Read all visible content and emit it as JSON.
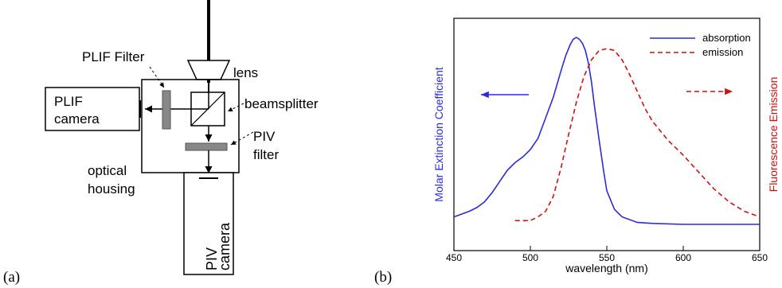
{
  "panel_a": {
    "label": "(a)",
    "lens": "lens",
    "plif_filter": "PLIF Filter",
    "plif_camera_line1": "PLIF",
    "plif_camera_line2": "camera",
    "beamsplitter": "beamsplitter",
    "piv_filter_line1": "PIV",
    "piv_filter_line2": "filter",
    "housing_line1": "optical",
    "housing_line2": "housing",
    "piv_camera_line1": "PIV",
    "piv_camera_line2": "camera"
  },
  "panel_b": {
    "label": "(b)"
  },
  "colors": {
    "absorption": "#2b2bd9",
    "emission": "#cc1111",
    "filter_gray": "#888888",
    "arrow_tip": "#c87a2a"
  },
  "chart_data": {
    "type": "line",
    "xlabel": "wavelength (nm)",
    "ylabel_left": "Molar Extinction Coefficient",
    "ylabel_right": "Fluorescence Emission",
    "xlim": [
      450,
      650
    ],
    "xticks": [
      450,
      500,
      550,
      600,
      650
    ],
    "ylim": [
      0,
      1
    ],
    "grid": false,
    "legend_position": "top-right",
    "series": [
      {
        "name": "absorption",
        "style": "solid",
        "color": "#2b2bd9",
        "x": [
          450,
          460,
          465,
          470,
          475,
          480,
          485,
          490,
          495,
          500,
          505,
          510,
          515,
          520,
          523,
          526,
          528,
          530,
          532,
          534,
          536,
          538,
          540,
          542,
          545,
          548,
          550,
          555,
          560,
          570,
          580,
          600,
          620,
          650
        ],
        "y": [
          0.04,
          0.07,
          0.09,
          0.12,
          0.17,
          0.23,
          0.29,
          0.33,
          0.36,
          0.4,
          0.46,
          0.57,
          0.68,
          0.82,
          0.9,
          0.96,
          0.99,
          1.0,
          0.99,
          0.97,
          0.93,
          0.86,
          0.76,
          0.63,
          0.45,
          0.28,
          0.18,
          0.08,
          0.04,
          0.01,
          0.005,
          0.0,
          0.0,
          0.0
        ]
      },
      {
        "name": "emission",
        "style": "dashed",
        "color": "#cc1111",
        "x": [
          490,
          500,
          505,
          510,
          515,
          520,
          525,
          530,
          535,
          540,
          545,
          550,
          555,
          560,
          565,
          570,
          575,
          580,
          590,
          600,
          610,
          620,
          630,
          640,
          650
        ],
        "y": [
          0.02,
          0.02,
          0.04,
          0.07,
          0.15,
          0.3,
          0.48,
          0.65,
          0.79,
          0.88,
          0.93,
          0.94,
          0.93,
          0.88,
          0.8,
          0.71,
          0.62,
          0.55,
          0.45,
          0.37,
          0.28,
          0.19,
          0.12,
          0.07,
          0.04
        ]
      }
    ]
  }
}
